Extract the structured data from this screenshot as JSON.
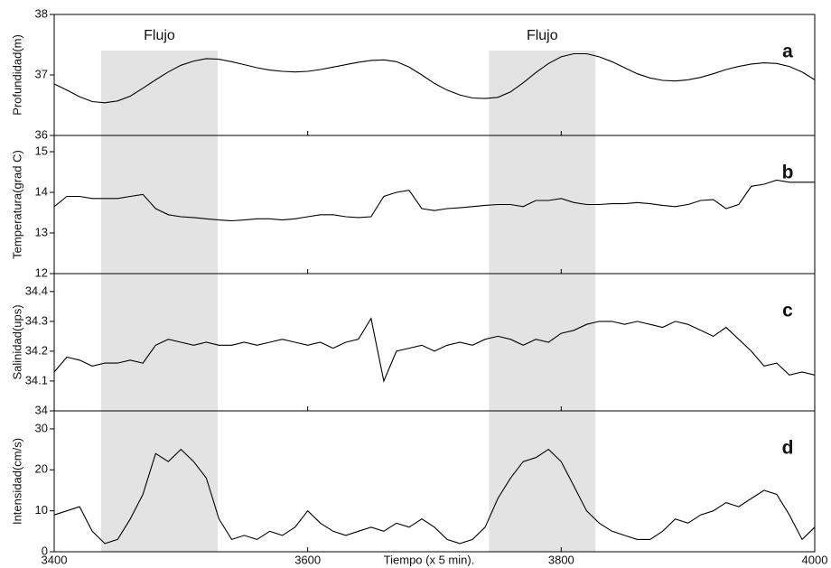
{
  "chart_data": [
    {
      "type": "line",
      "label": "a",
      "ylabel": "Profundidad(m)",
      "xlim": [
        3400,
        4000
      ],
      "xticks": [
        3400,
        3600,
        3800,
        4000
      ],
      "ylim": [
        36,
        38
      ],
      "yticks": [
        36,
        37,
        38
      ],
      "shaded_spans": [
        {
          "label": "Flujo",
          "range": [
            3437,
            3529
          ]
        },
        {
          "label": "Flujo",
          "range": [
            3743,
            3827
          ]
        }
      ],
      "x": [
        3400,
        3410,
        3420,
        3430,
        3440,
        3450,
        3460,
        3470,
        3480,
        3490,
        3500,
        3510,
        3520,
        3530,
        3540,
        3550,
        3560,
        3570,
        3580,
        3590,
        3600,
        3610,
        3620,
        3630,
        3640,
        3650,
        3660,
        3670,
        3680,
        3690,
        3700,
        3710,
        3720,
        3730,
        3740,
        3750,
        3760,
        3770,
        3780,
        3790,
        3800,
        3810,
        3820,
        3830,
        3840,
        3850,
        3860,
        3870,
        3880,
        3890,
        3900,
        3910,
        3920,
        3930,
        3940,
        3950,
        3960,
        3970,
        3980,
        3990,
        4000
      ],
      "values": [
        36.85,
        36.75,
        36.64,
        36.56,
        36.54,
        36.57,
        36.65,
        36.78,
        36.92,
        37.05,
        37.16,
        37.23,
        37.27,
        37.26,
        37.22,
        37.17,
        37.12,
        37.08,
        37.06,
        37.05,
        37.06,
        37.09,
        37.13,
        37.17,
        37.21,
        37.24,
        37.25,
        37.22,
        37.13,
        37.0,
        36.86,
        36.75,
        36.67,
        36.62,
        36.61,
        36.63,
        36.72,
        36.87,
        37.04,
        37.19,
        37.3,
        37.35,
        37.35,
        37.3,
        37.22,
        37.12,
        37.02,
        36.95,
        36.91,
        36.9,
        36.92,
        36.96,
        37.02,
        37.09,
        37.14,
        37.18,
        37.2,
        37.19,
        37.14,
        37.05,
        36.92
      ]
    },
    {
      "type": "line",
      "label": "b",
      "ylabel": "Temperatura(grad C)",
      "xlim": [
        3400,
        4000
      ],
      "xticks": [
        3400,
        3600,
        3800,
        4000
      ],
      "ylim": [
        12,
        15.4
      ],
      "yticks": [
        12,
        13,
        14,
        15
      ],
      "x": [
        3400,
        3410,
        3420,
        3430,
        3440,
        3450,
        3460,
        3470,
        3480,
        3490,
        3500,
        3510,
        3520,
        3530,
        3540,
        3550,
        3560,
        3570,
        3580,
        3590,
        3600,
        3610,
        3620,
        3630,
        3640,
        3650,
        3660,
        3670,
        3680,
        3690,
        3700,
        3710,
        3720,
        3730,
        3740,
        3750,
        3760,
        3770,
        3780,
        3790,
        3800,
        3810,
        3820,
        3830,
        3840,
        3850,
        3860,
        3870,
        3880,
        3890,
        3900,
        3910,
        3920,
        3930,
        3940,
        3950,
        3960,
        3970,
        3980,
        3990,
        4000
      ],
      "values": [
        13.65,
        13.9,
        13.9,
        13.85,
        13.85,
        13.85,
        13.9,
        13.95,
        13.6,
        13.45,
        13.4,
        13.38,
        13.35,
        13.32,
        13.3,
        13.32,
        13.35,
        13.35,
        13.32,
        13.35,
        13.4,
        13.45,
        13.45,
        13.4,
        13.38,
        13.4,
        13.9,
        14.0,
        14.05,
        13.6,
        13.55,
        13.6,
        13.62,
        13.65,
        13.68,
        13.7,
        13.7,
        13.65,
        13.8,
        13.8,
        13.85,
        13.75,
        13.7,
        13.7,
        13.72,
        13.72,
        13.75,
        13.72,
        13.68,
        13.65,
        13.7,
        13.8,
        13.82,
        13.6,
        13.7,
        14.15,
        14.2,
        14.3,
        14.25,
        14.25,
        14.25
      ]
    },
    {
      "type": "line",
      "label": "c",
      "ylabel": "Salinidad(ups)",
      "xlim": [
        3400,
        4000
      ],
      "xticks": [
        3400,
        3600,
        3800,
        4000
      ],
      "ylim": [
        34,
        34.46
      ],
      "yticks": [
        34,
        34.1,
        34.2,
        34.3,
        34.4
      ],
      "x": [
        3400,
        3410,
        3420,
        3430,
        3440,
        3450,
        3460,
        3470,
        3480,
        3490,
        3500,
        3510,
        3520,
        3530,
        3540,
        3550,
        3560,
        3570,
        3580,
        3590,
        3600,
        3610,
        3620,
        3630,
        3640,
        3650,
        3660,
        3670,
        3680,
        3690,
        3700,
        3710,
        3720,
        3730,
        3740,
        3750,
        3760,
        3770,
        3780,
        3790,
        3800,
        3810,
        3820,
        3830,
        3840,
        3850,
        3860,
        3870,
        3880,
        3890,
        3900,
        3910,
        3920,
        3930,
        3940,
        3950,
        3960,
        3970,
        3980,
        3990,
        4000
      ],
      "values": [
        34.13,
        34.18,
        34.17,
        34.15,
        34.16,
        34.16,
        34.17,
        34.16,
        34.22,
        34.24,
        34.23,
        34.22,
        34.23,
        34.22,
        34.22,
        34.23,
        34.22,
        34.23,
        34.24,
        34.23,
        34.22,
        34.23,
        34.21,
        34.23,
        34.24,
        34.31,
        34.1,
        34.2,
        34.21,
        34.22,
        34.2,
        34.22,
        34.23,
        34.22,
        34.24,
        34.25,
        34.24,
        34.22,
        34.24,
        34.23,
        34.26,
        34.27,
        34.29,
        34.3,
        34.3,
        34.29,
        34.3,
        34.29,
        34.28,
        34.3,
        34.29,
        34.27,
        34.25,
        34.28,
        34.24,
        34.2,
        34.15,
        34.16,
        34.12,
        34.13,
        34.12
      ]
    },
    {
      "type": "line",
      "label": "d",
      "ylabel": "Intensidad(cm/s)",
      "xlabel": "Tiempo (x 5 min).",
      "xlim": [
        3400,
        4000
      ],
      "xticks": [
        3400,
        3600,
        3800,
        4000
      ],
      "ylim": [
        0,
        34.4
      ],
      "yticks": [
        0,
        10,
        20,
        30
      ],
      "x": [
        3400,
        3410,
        3420,
        3430,
        3440,
        3450,
        3460,
        3470,
        3480,
        3490,
        3500,
        3510,
        3520,
        3530,
        3540,
        3550,
        3560,
        3570,
        3580,
        3590,
        3600,
        3610,
        3620,
        3630,
        3640,
        3650,
        3660,
        3670,
        3680,
        3690,
        3700,
        3710,
        3720,
        3730,
        3740,
        3750,
        3760,
        3770,
        3780,
        3790,
        3800,
        3810,
        3820,
        3830,
        3840,
        3850,
        3860,
        3870,
        3880,
        3890,
        3900,
        3910,
        3920,
        3930,
        3940,
        3950,
        3960,
        3970,
        3980,
        3990,
        4000
      ],
      "values": [
        9,
        10,
        11,
        5,
        2,
        3,
        8,
        14,
        24,
        22,
        25,
        22,
        18,
        8,
        3,
        4,
        3,
        5,
        4,
        6,
        10,
        7,
        5,
        4,
        5,
        6,
        5,
        7,
        6,
        8,
        6,
        3,
        2,
        3,
        6,
        13,
        18,
        22,
        23,
        25,
        22,
        16,
        10,
        7,
        5,
        4,
        3,
        3,
        5,
        8,
        7,
        9,
        10,
        12,
        11,
        13,
        15,
        14,
        9,
        3,
        6
      ]
    }
  ]
}
